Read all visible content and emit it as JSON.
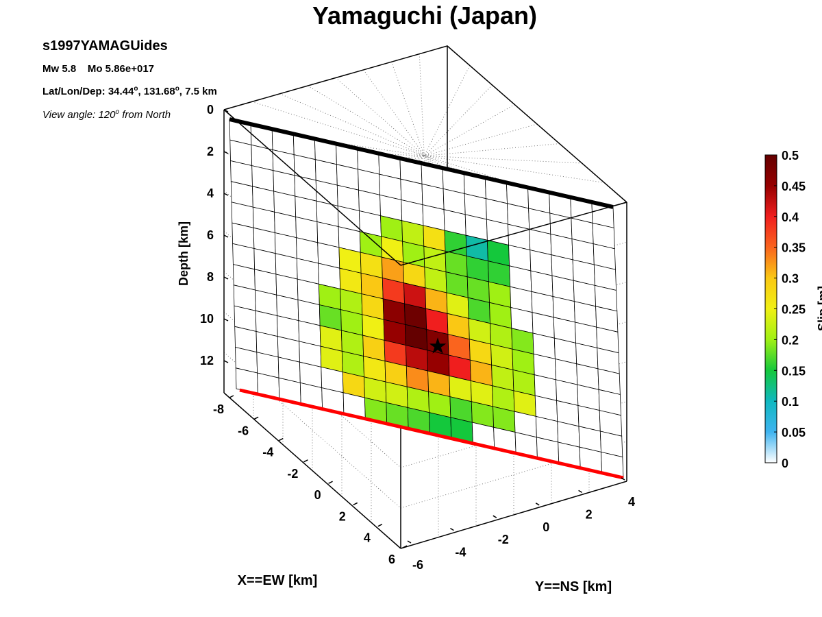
{
  "title": "Yamaguchi (Japan)",
  "info": {
    "event_name": "s1997YAMAGUides",
    "mw_label": "Mw 5.8",
    "mo_label": "Mo 5.86e+017",
    "location_prefix": "Lat/Lon/Dep: 34.44",
    "location_mid": ", 131.68",
    "location_suffix": ", 7.5 km",
    "degree_mark": "o",
    "view_prefix": "View angle: 120",
    "view_suffix": " from North"
  },
  "chart_data": {
    "type": "heatmap",
    "title": "Yamaguchi (Japan)",
    "zlabel": "Depth [km]",
    "xlabel": "X==EW [km]",
    "ylabel": "Y==NS [km]",
    "colorbar_label": "Slip [m]",
    "depth_ticks": [
      0,
      2,
      4,
      6,
      8,
      10,
      12
    ],
    "x_ticks": [
      -8,
      -6,
      -4,
      -2,
      0,
      2,
      4,
      6
    ],
    "y_ticks": [
      -6,
      -4,
      -2,
      0,
      2,
      4
    ],
    "colorbar_ticks": [
      0,
      0.05,
      0.1,
      0.15,
      0.2,
      0.25,
      0.3,
      0.35,
      0.4,
      0.45,
      0.5
    ],
    "colorbar_range": [
      0,
      0.5
    ],
    "grid": true,
    "colormap": [
      "#ffffff",
      "#3fb4f0",
      "#10b8c0",
      "#14c83c",
      "#a0f014",
      "#f0f014",
      "#fac814",
      "#fa641e",
      "#f01e1e",
      "#960000",
      "#640000"
    ],
    "fault_columns": 18,
    "fault_rows": 13,
    "slip": [
      [
        0,
        0,
        0,
        0,
        0,
        0,
        0,
        0,
        0,
        0,
        0,
        0,
        0,
        0,
        0,
        0,
        0,
        0
      ],
      [
        0,
        0,
        0,
        0,
        0,
        0,
        0,
        0,
        0,
        0,
        0,
        0,
        0,
        0,
        0,
        0,
        0,
        0
      ],
      [
        0,
        0,
        0,
        0,
        0,
        0,
        0,
        0,
        0,
        0,
        0,
        0,
        0,
        0,
        0,
        0,
        0,
        0
      ],
      [
        0,
        0,
        0,
        0,
        0,
        0,
        0,
        0.2,
        0.22,
        0.27,
        0.16,
        0.11,
        0.15,
        0,
        0,
        0,
        0,
        0
      ],
      [
        0,
        0,
        0,
        0,
        0,
        0,
        0.2,
        0.25,
        0.2,
        0.22,
        0.18,
        0.16,
        0.16,
        0,
        0,
        0,
        0,
        0
      ],
      [
        0,
        0,
        0,
        0,
        0,
        0.25,
        0.27,
        0.32,
        0.28,
        0.22,
        0.18,
        0.18,
        0.2,
        0,
        0,
        0,
        0,
        0
      ],
      [
        0,
        0,
        0,
        0,
        0,
        0.26,
        0.3,
        0.38,
        0.42,
        0.31,
        0.24,
        0.17,
        0.2,
        0,
        0,
        0,
        0,
        0
      ],
      [
        0,
        0,
        0,
        0,
        0.2,
        0.21,
        0.28,
        0.46,
        0.49,
        0.4,
        0.3,
        0.23,
        0.21,
        0.19,
        0,
        0,
        0,
        0
      ],
      [
        0,
        0,
        0,
        0,
        0.18,
        0.2,
        0.25,
        0.45,
        0.5,
        0.47,
        0.35,
        0.28,
        0.23,
        0.2,
        0,
        0,
        0,
        0
      ],
      [
        0,
        0,
        0,
        0,
        0.24,
        0.21,
        0.29,
        0.38,
        0.43,
        0.45,
        0.4,
        0.31,
        0.22,
        0.21,
        0,
        0,
        0,
        0
      ],
      [
        0,
        0,
        0,
        0,
        0.24,
        0.21,
        0.26,
        0.29,
        0.33,
        0.31,
        0.24,
        0.24,
        0.21,
        0.24,
        0,
        0,
        0,
        0
      ],
      [
        0,
        0,
        0,
        0,
        0,
        0.28,
        0.23,
        0.23,
        0.21,
        0.2,
        0.17,
        0.19,
        0.19,
        0,
        0,
        0,
        0,
        0
      ],
      [
        0,
        0,
        0,
        0,
        0,
        0,
        0.19,
        0.18,
        0.17,
        0.15,
        0.15,
        0,
        0,
        0,
        0,
        0,
        0,
        0
      ]
    ],
    "hypocenter": {
      "column": 9.5,
      "row": 8.7,
      "depth_km": 7.5
    }
  },
  "colors": {
    "top_edge": "#000000",
    "bottom_edge": "#ff0000",
    "grid_line": "#000000",
    "box_line": "#000000"
  }
}
